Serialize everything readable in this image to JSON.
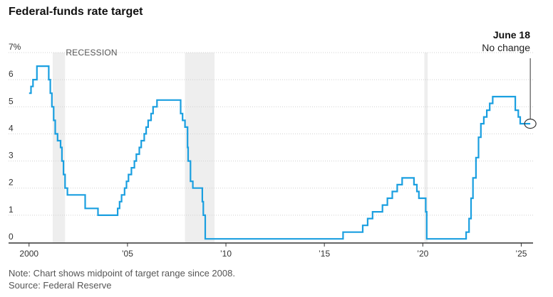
{
  "title": "Federal-funds rate target",
  "note": "Note: Chart shows midpoint of target range since 2008.",
  "source": "Source: Federal Reserve",
  "colors": {
    "line": "#1a9fe0",
    "recession": "#eeeeee",
    "grid": "#d0d0d0",
    "axis": "#333333"
  },
  "chart_data": {
    "type": "line",
    "title": "Federal-funds rate target",
    "ylim": [
      0,
      7
    ],
    "xlim": [
      1999.9,
      2025.6
    ],
    "yticks": [
      {
        "value": 7,
        "label": "7%"
      },
      {
        "value": 6,
        "label": "6"
      },
      {
        "value": 5,
        "label": "5"
      },
      {
        "value": 4,
        "label": "4"
      },
      {
        "value": 3,
        "label": "3"
      },
      {
        "value": 2,
        "label": "2"
      },
      {
        "value": 1,
        "label": "1"
      },
      {
        "value": 0,
        "label": "0"
      }
    ],
    "xticks": [
      {
        "value": 2000,
        "label": "2000"
      },
      {
        "value": 2005,
        "label": "’05"
      },
      {
        "value": 2010,
        "label": "’10"
      },
      {
        "value": 2015,
        "label": "’15"
      },
      {
        "value": 2020,
        "label": "’20"
      },
      {
        "value": 2025,
        "label": "’25"
      }
    ],
    "recession_label": "RECESSION",
    "recessions": [
      [
        2001.2,
        2001.83
      ],
      [
        2007.92,
        2009.42
      ],
      [
        2020.08,
        2020.25
      ]
    ],
    "annotation": {
      "date": "June 18",
      "text": "No change",
      "x": 2025.46,
      "y": 4.375
    },
    "series": [
      {
        "points": [
          [
            2000.0,
            5.5
          ],
          [
            2000.1,
            5.75
          ],
          [
            2000.2,
            6.0
          ],
          [
            2000.4,
            6.5
          ],
          [
            2001.0,
            6.0
          ],
          [
            2001.08,
            5.5
          ],
          [
            2001.16,
            5.0
          ],
          [
            2001.25,
            4.5
          ],
          [
            2001.33,
            4.0
          ],
          [
            2001.45,
            3.75
          ],
          [
            2001.6,
            3.5
          ],
          [
            2001.67,
            3.0
          ],
          [
            2001.75,
            2.5
          ],
          [
            2001.83,
            2.0
          ],
          [
            2001.95,
            1.75
          ],
          [
            2002.85,
            1.25
          ],
          [
            2003.5,
            1.0
          ],
          [
            2004.5,
            1.25
          ],
          [
            2004.6,
            1.5
          ],
          [
            2004.7,
            1.75
          ],
          [
            2004.85,
            2.0
          ],
          [
            2004.95,
            2.25
          ],
          [
            2005.05,
            2.5
          ],
          [
            2005.2,
            2.75
          ],
          [
            2005.35,
            3.0
          ],
          [
            2005.45,
            3.25
          ],
          [
            2005.6,
            3.5
          ],
          [
            2005.7,
            3.75
          ],
          [
            2005.85,
            4.0
          ],
          [
            2005.95,
            4.25
          ],
          [
            2006.05,
            4.5
          ],
          [
            2006.2,
            4.75
          ],
          [
            2006.3,
            5.0
          ],
          [
            2006.5,
            5.25
          ],
          [
            2007.7,
            4.75
          ],
          [
            2007.8,
            4.5
          ],
          [
            2007.92,
            4.25
          ],
          [
            2008.05,
            3.5
          ],
          [
            2008.08,
            3.0
          ],
          [
            2008.2,
            2.25
          ],
          [
            2008.32,
            2.0
          ],
          [
            2008.8,
            1.5
          ],
          [
            2008.85,
            1.0
          ],
          [
            2008.95,
            0.125
          ],
          [
            2015.95,
            0.375
          ],
          [
            2016.95,
            0.625
          ],
          [
            2017.2,
            0.875
          ],
          [
            2017.45,
            1.125
          ],
          [
            2017.95,
            1.375
          ],
          [
            2018.2,
            1.625
          ],
          [
            2018.45,
            1.875
          ],
          [
            2018.7,
            2.125
          ],
          [
            2018.95,
            2.375
          ],
          [
            2019.55,
            2.125
          ],
          [
            2019.7,
            1.875
          ],
          [
            2019.8,
            1.625
          ],
          [
            2020.15,
            1.125
          ],
          [
            2020.2,
            0.125
          ],
          [
            2022.2,
            0.375
          ],
          [
            2022.35,
            0.875
          ],
          [
            2022.45,
            1.625
          ],
          [
            2022.55,
            2.375
          ],
          [
            2022.7,
            3.125
          ],
          [
            2022.83,
            3.875
          ],
          [
            2022.95,
            4.375
          ],
          [
            2023.1,
            4.625
          ],
          [
            2023.25,
            4.875
          ],
          [
            2023.4,
            5.125
          ],
          [
            2023.55,
            5.375
          ],
          [
            2024.7,
            4.875
          ],
          [
            2024.85,
            4.625
          ],
          [
            2024.95,
            4.375
          ],
          [
            2025.46,
            4.375
          ]
        ]
      }
    ]
  }
}
